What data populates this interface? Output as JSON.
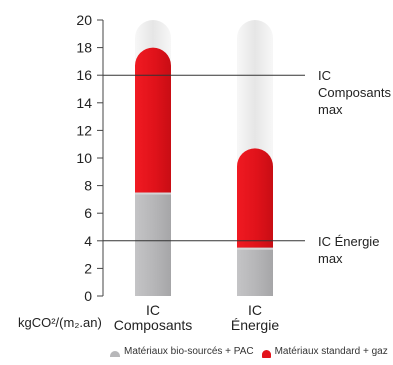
{
  "chart_data": {
    "type": "bar",
    "categories": [
      [
        "IC",
        "Composants"
      ],
      [
        "IC",
        "Énergie"
      ]
    ],
    "ylim": [
      0,
      20
    ],
    "yticks": [
      0,
      2,
      4,
      6,
      8,
      10,
      12,
      14,
      16,
      18,
      20
    ],
    "ylabel": "kgCO²/(m₂.an)",
    "series": [
      {
        "name": "Matériaux bio-sourcés + PAC",
        "color": "#b7b7b9",
        "values": [
          7.5,
          3.5
        ]
      },
      {
        "name": "Matériaux standard + gaz",
        "color": "#e3131b",
        "values": [
          18,
          10.7
        ]
      }
    ],
    "background_bar": {
      "value": 20,
      "color": "#eeeeee"
    },
    "thresholds": [
      {
        "value": 16,
        "label": [
          "IC",
          "Composants",
          "max"
        ]
      },
      {
        "value": 4,
        "label": [
          "IC Énergie",
          "max"
        ]
      }
    ],
    "grid": false,
    "legend_position": "bottom"
  }
}
